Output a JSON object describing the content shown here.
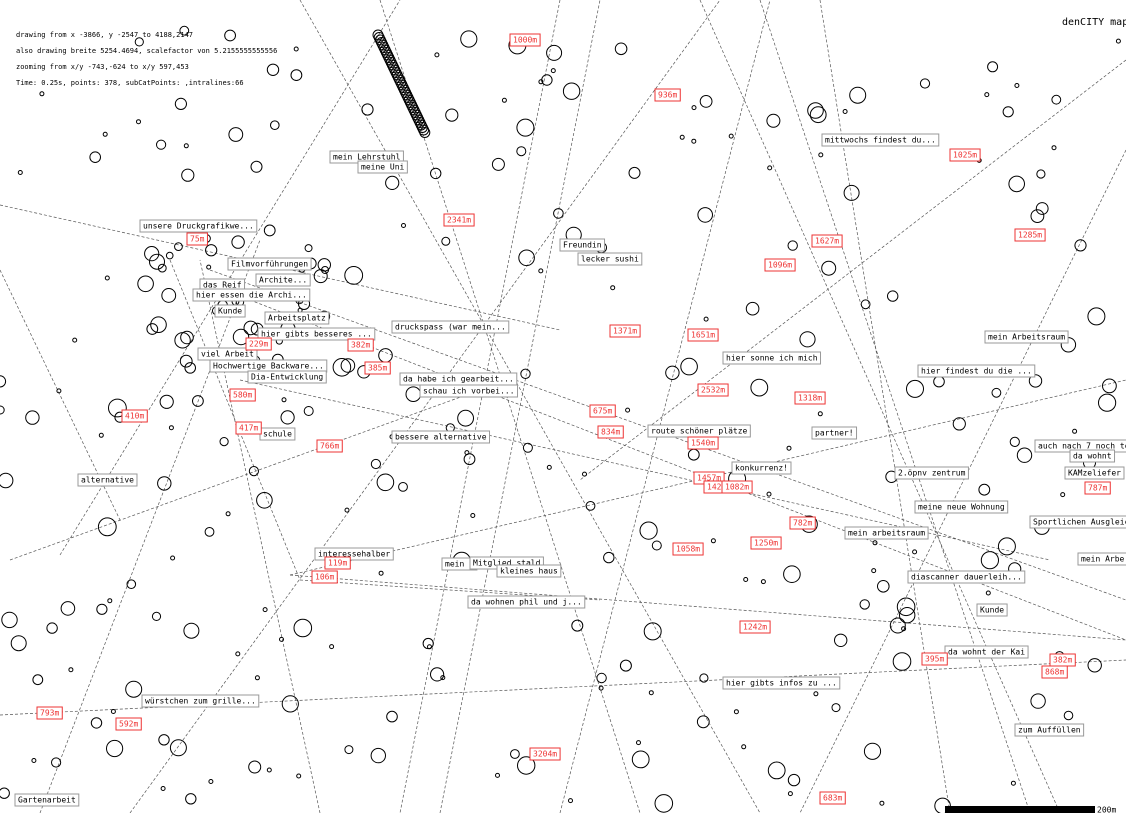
{
  "header": {
    "title": "denCITY map",
    "debug": [
      "drawing from x -3866, y -2547 to 4188,2147",
      "also drawing breite 5254.4694, scalefactor von 5.2155555555556",
      "zooming from x/y -743,-624 to x/y 597,453",
      "Time: 0.25s, points: 378, subCatPoints: ,intralines:66"
    ]
  },
  "labels": [
    "mein Lehrstuhl",
    "meine Uni",
    "unsere Druckgrafikwe...",
    "Filmvorführungen",
    "Archite...",
    "das Reif",
    "hier essen die Archi...",
    "Kunde",
    "Arbeitsplatz",
    "hier gibts besseres ...",
    "viel Arbeit",
    "Hochwertige Backware...",
    "Dia-Entwicklung",
    "schule",
    "bessere alternative",
    "alternative",
    "Freundin",
    "lecker sushi",
    "druckspass (war mein...",
    "da habe ich gearbeit...",
    "schau ich vorbei...",
    "mittwochs findest du...",
    "hier sonne ich mich",
    "mein Arbeitsraum",
    "hier findest du die ...",
    "route schöner plätze",
    "partner!",
    "konkurrenz!",
    "2.öpnv zentrum",
    "meine neue Wohnung",
    "auch nach 7 noch to...",
    "da wohnt",
    "KAMzeliefer",
    "Sportlichen Ausgleic...",
    "mein arbeitsraum",
    "mein Arbe",
    "interessehalber",
    "mein e",
    "Mitglied stald",
    "kleines haus",
    "diascanner dauerleih...",
    "da wohnen phil und j...",
    "Kunde",
    "da wohnt der Kai",
    "hier gibts infos zu ...",
    "würstchen zum grille...",
    "zum Auffüllen",
    "Gartenarbeit"
  ],
  "distances": [
    "1000m",
    "936m",
    "1025m",
    "1285m",
    "1627m",
    "1096m",
    "2341m",
    "75m",
    "1371m",
    "1651m",
    "229m",
    "382m",
    "385m",
    "2532m",
    "1318m",
    "580m",
    "675m",
    "834m",
    "410m",
    "417m",
    "766m",
    "1540m",
    "1457m",
    "1420m",
    "1082m",
    "787m",
    "782m",
    "1250m",
    "1058m",
    "119m",
    "106m",
    "1242m",
    "395m",
    "382m",
    "868m",
    "793m",
    "592m",
    "3204m",
    "683m"
  ],
  "scale": "200m"
}
